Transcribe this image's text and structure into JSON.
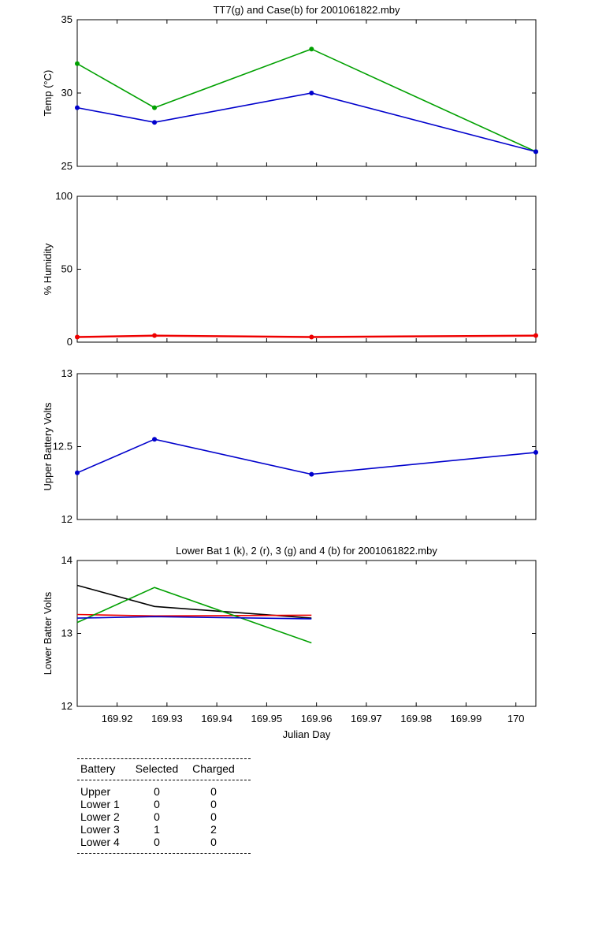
{
  "chart_data": [
    {
      "type": "line",
      "title": "TT7(g) and Case(b) for 2001061822.mby",
      "xlabel": "",
      "ylabel": "Temp  (°C)",
      "xlim": [
        169.912,
        170.004
      ],
      "ylim": [
        25,
        35
      ],
      "yticks": [
        "25",
        "30",
        "35"
      ],
      "grid": false,
      "series": [
        {
          "color": "#00a000",
          "markers": true,
          "x": [
            169.912,
            169.9275,
            169.959,
            170.004
          ],
          "y": [
            32,
            29,
            33,
            26
          ]
        },
        {
          "color": "#0000cc",
          "markers": true,
          "x": [
            169.912,
            169.9275,
            169.959,
            170.004
          ],
          "y": [
            29,
            28,
            30,
            26
          ]
        }
      ]
    },
    {
      "type": "line",
      "title": "",
      "xlabel": "",
      "ylabel": "% Humidity",
      "xlim": [
        169.912,
        170.004
      ],
      "ylim": [
        0,
        100
      ],
      "yticks": [
        "0",
        "50",
        "100"
      ],
      "grid": false,
      "series": [
        {
          "color": "#ee0000",
          "markers": true,
          "x": [
            169.912,
            169.9275,
            169.959,
            170.004
          ],
          "y": [
            3.5,
            4.5,
            3.5,
            4.5
          ]
        }
      ]
    },
    {
      "type": "line",
      "title": "",
      "xlabel": "",
      "ylabel": "Upper Battery Volts",
      "xlim": [
        169.912,
        170.004
      ],
      "ylim": [
        12,
        13
      ],
      "yticks": [
        "12",
        "12.5",
        "13"
      ],
      "grid": false,
      "series": [
        {
          "color": "#0000cc",
          "markers": true,
          "x": [
            169.912,
            169.9275,
            169.959,
            170.004
          ],
          "y": [
            12.32,
            12.55,
            12.31,
            12.46
          ]
        }
      ]
    },
    {
      "type": "line",
      "title": "Lower Bat 1 (k), 2 (r), 3 (g) and 4 (b) for 2001061822.mby",
      "xlabel": "Julian Day",
      "ylabel": "Lower Batter Volts",
      "xlim": [
        169.912,
        170.004
      ],
      "ylim": [
        12,
        14
      ],
      "yticks": [
        "12",
        "13",
        "14"
      ],
      "xticks": [
        "169.92",
        "169.93",
        "169.94",
        "169.95",
        "169.96",
        "169.97",
        "169.98",
        "169.99",
        "170"
      ],
      "xtick_values": [
        169.92,
        169.93,
        169.94,
        169.95,
        169.96,
        169.97,
        169.98,
        169.99,
        170.0
      ],
      "grid": false,
      "series": [
        {
          "color": "#000000",
          "markers": false,
          "x": [
            169.912,
            169.9275,
            169.959
          ],
          "y": [
            13.66,
            13.37,
            13.21
          ]
        },
        {
          "color": "#ee0000",
          "markers": false,
          "x": [
            169.912,
            169.9275,
            169.959
          ],
          "y": [
            13.26,
            13.24,
            13.25
          ]
        },
        {
          "color": "#00a000",
          "markers": false,
          "x": [
            169.912,
            169.9275,
            169.959
          ],
          "y": [
            13.15,
            13.63,
            12.87
          ]
        },
        {
          "color": "#0000cc",
          "markers": false,
          "x": [
            169.912,
            169.9275,
            169.959
          ],
          "y": [
            13.21,
            13.23,
            13.2
          ]
        }
      ]
    }
  ],
  "battery_table": {
    "headers": {
      "battery": "Battery",
      "selected": "Selected",
      "charged": "Charged"
    },
    "rows": [
      {
        "battery": "Upper",
        "selected": "0",
        "charged": "0"
      },
      {
        "battery": "Lower 1",
        "selected": "0",
        "charged": "0"
      },
      {
        "battery": "Lower 2",
        "selected": "0",
        "charged": "0"
      },
      {
        "battery": "Lower 3",
        "selected": "1",
        "charged": "2"
      },
      {
        "battery": "Lower 4",
        "selected": "0",
        "charged": "0"
      }
    ]
  }
}
